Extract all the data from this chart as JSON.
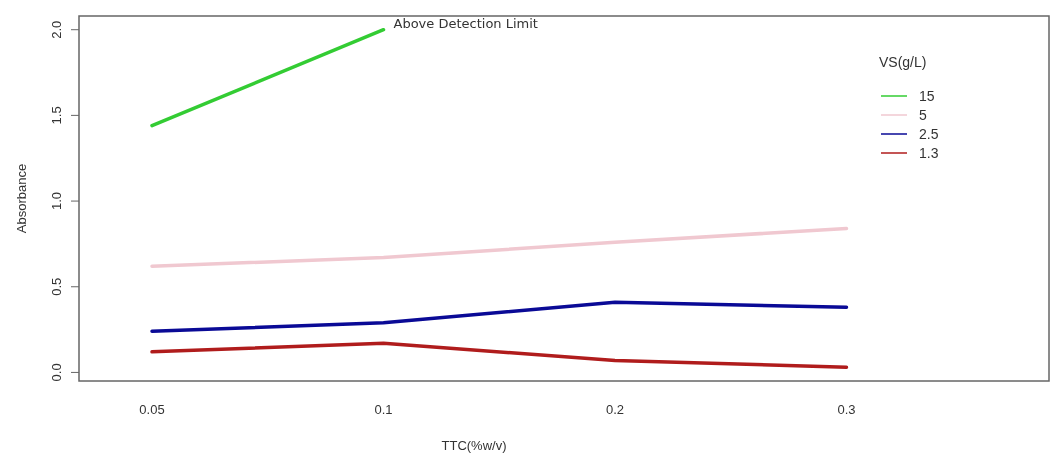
{
  "chart_data": {
    "type": "line",
    "xlabel": "TTC(%w/v)",
    "ylabel": "Absorbance",
    "legend_title": "VS(g/L)",
    "legend": "top right",
    "categories": [
      "0.05",
      "0.1",
      "0.2",
      "0.3"
    ],
    "ylim": [
      -0.05,
      2.08
    ],
    "yticks": [
      {
        "value": 0,
        "label": "0.0"
      },
      0.5,
      {
        "value": 1,
        "label": "1.0"
      },
      1.5,
      {
        "value": 2,
        "label": "2.0"
      }
    ],
    "annotations": [
      {
        "text": "Above Detection Limit",
        "x": "0.1",
        "y": 2.0
      }
    ],
    "series": [
      {
        "name": "15",
        "color": "#33cc33",
        "values": [
          1.44,
          2.0,
          null,
          null
        ]
      },
      {
        "name": "5",
        "color": "#f0c8d0",
        "values": [
          0.62,
          0.67,
          0.76,
          0.84
        ]
      },
      {
        "name": "2.5",
        "color": "#0a0a96",
        "values": [
          0.24,
          0.29,
          0.41,
          0.38
        ]
      },
      {
        "name": "1.3",
        "color": "#b01c1c",
        "values": [
          0.12,
          0.17,
          0.07,
          0.03
        ]
      }
    ]
  }
}
